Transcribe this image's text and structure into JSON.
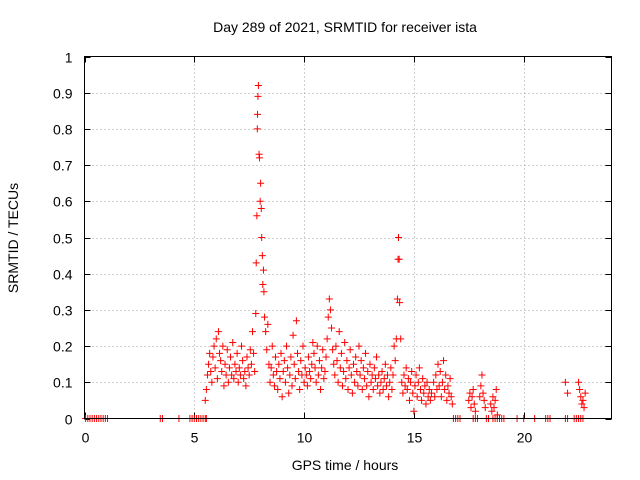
{
  "chart_data": {
    "type": "scatter",
    "title": "Day 289 of 2021, SRMTID for receiver ista",
    "xlabel": "GPS time / hours",
    "ylabel": "SRMTID / TECUs",
    "xlim": [
      0,
      24
    ],
    "ylim": [
      0,
      1
    ],
    "xticks": [
      0,
      5,
      10,
      15,
      20
    ],
    "xtick_labels": [
      "0",
      "5",
      "10",
      "15",
      "20"
    ],
    "yticks": [
      0,
      0.1,
      0.2,
      0.3,
      0.4,
      0.5,
      0.6,
      0.7,
      0.8,
      0.9,
      1
    ],
    "ytick_labels": [
      "0",
      "0.1",
      "0.2",
      "0.3",
      "0.4",
      "0.5",
      "0.6",
      "0.7",
      "0.8",
      "0.9",
      "1"
    ],
    "grid": true,
    "marker": "+",
    "color": "#ff0000",
    "series": [
      {
        "name": "SRMTID",
        "points": [
          [
            0.05,
            0
          ],
          [
            0.15,
            0
          ],
          [
            0.25,
            0
          ],
          [
            0.35,
            0
          ],
          [
            0.45,
            0
          ],
          [
            0.55,
            0
          ],
          [
            0.65,
            0
          ],
          [
            0.75,
            0
          ],
          [
            0.85,
            0
          ],
          [
            0.95,
            0
          ],
          [
            1.05,
            0
          ],
          [
            3.45,
            0
          ],
          [
            3.55,
            0
          ],
          [
            4.3,
            0
          ],
          [
            4.8,
            0
          ],
          [
            4.9,
            0
          ],
          [
            5.0,
            0
          ],
          [
            5.1,
            0
          ],
          [
            5.2,
            0
          ],
          [
            5.3,
            0
          ],
          [
            5.4,
            0
          ],
          [
            5.5,
            0
          ],
          [
            5.55,
            0
          ],
          [
            5.5,
            0.05
          ],
          [
            5.55,
            0.08
          ],
          [
            5.6,
            0.12
          ],
          [
            5.65,
            0.15
          ],
          [
            5.7,
            0.18
          ],
          [
            5.75,
            0.13
          ],
          [
            5.8,
            0.1
          ],
          [
            5.85,
            0.17
          ],
          [
            5.9,
            0.2
          ],
          [
            5.95,
            0.14
          ],
          [
            6.0,
            0.22
          ],
          [
            6.05,
            0.11
          ],
          [
            6.1,
            0.24
          ],
          [
            6.15,
            0.18
          ],
          [
            6.2,
            0.16
          ],
          [
            6.25,
            0.13
          ],
          [
            6.3,
            0.2
          ],
          [
            6.35,
            0.09
          ],
          [
            6.4,
            0.15
          ],
          [
            6.45,
            0.12
          ],
          [
            6.5,
            0.19
          ],
          [
            6.55,
            0.1
          ],
          [
            6.6,
            0.14
          ],
          [
            6.65,
            0.17
          ],
          [
            6.7,
            0.12
          ],
          [
            6.75,
            0.21
          ],
          [
            6.8,
            0.11
          ],
          [
            6.85,
            0.15
          ],
          [
            6.9,
            0.13
          ],
          [
            6.95,
            0.18
          ],
          [
            7.0,
            0.1
          ],
          [
            7.05,
            0.14
          ],
          [
            7.1,
            0.12
          ],
          [
            7.15,
            0.2
          ],
          [
            7.2,
            0.16
          ],
          [
            7.25,
            0.11
          ],
          [
            7.3,
            0.13
          ],
          [
            7.35,
            0.09
          ],
          [
            7.4,
            0.17
          ],
          [
            7.45,
            0.14
          ],
          [
            7.5,
            0.12
          ],
          [
            7.55,
            0.19
          ],
          [
            7.6,
            0.15
          ],
          [
            7.65,
            0.24
          ],
          [
            7.7,
            0.18
          ],
          [
            7.75,
            0.13
          ],
          [
            7.8,
            0.29
          ],
          [
            7.82,
            0.43
          ],
          [
            7.85,
            0.56
          ],
          [
            7.87,
            0.8
          ],
          [
            7.88,
            0.84
          ],
          [
            7.9,
            0.89
          ],
          [
            7.92,
            0.92
          ],
          [
            7.95,
            0.73
          ],
          [
            7.97,
            0.72
          ],
          [
            8.0,
            0.6
          ],
          [
            8.02,
            0.65
          ],
          [
            8.05,
            0.58
          ],
          [
            8.07,
            0.5
          ],
          [
            8.1,
            0.45
          ],
          [
            8.12,
            0.37
          ],
          [
            8.15,
            0.41
          ],
          [
            8.17,
            0.35
          ],
          [
            8.2,
            0.28
          ],
          [
            8.25,
            0.24
          ],
          [
            8.3,
            0.19
          ],
          [
            8.35,
            0.26
          ],
          [
            8.4,
            0.15
          ],
          [
            8.45,
            0.1
          ],
          [
            8.5,
            0.14
          ],
          [
            8.55,
            0.2
          ],
          [
            8.6,
            0.12
          ],
          [
            8.65,
            0.09
          ],
          [
            8.7,
            0.17
          ],
          [
            8.75,
            0.13
          ],
          [
            8.8,
            0.08
          ],
          [
            8.85,
            0.15
          ],
          [
            8.9,
            0.11
          ],
          [
            8.95,
            0.18
          ],
          [
            9.0,
            0.06
          ],
          [
            9.05,
            0.13
          ],
          [
            9.1,
            0.16
          ],
          [
            9.15,
            0.1
          ],
          [
            9.2,
            0.2
          ],
          [
            9.25,
            0.14
          ],
          [
            9.3,
            0.07
          ],
          [
            9.35,
            0.12
          ],
          [
            9.4,
            0.17
          ],
          [
            9.45,
            0.09
          ],
          [
            9.5,
            0.23
          ],
          [
            9.55,
            0.15
          ],
          [
            9.6,
            0.11
          ],
          [
            9.65,
            0.27
          ],
          [
            9.7,
            0.18
          ],
          [
            9.75,
            0.13
          ],
          [
            9.8,
            0.08
          ],
          [
            9.85,
            0.16
          ],
          [
            9.9,
            0.12
          ],
          [
            9.95,
            0.2
          ],
          [
            10.0,
            0.1
          ],
          [
            10.05,
            0.14
          ],
          [
            10.1,
            0.12
          ],
          [
            10.15,
            0.09
          ],
          [
            10.2,
            0.17
          ],
          [
            10.25,
            0.13
          ],
          [
            10.3,
            0.11
          ],
          [
            10.35,
            0.15
          ],
          [
            10.4,
            0.21
          ],
          [
            10.45,
            0.18
          ],
          [
            10.5,
            0.14
          ],
          [
            10.55,
            0.1
          ],
          [
            10.6,
            0.2
          ],
          [
            10.65,
            0.12
          ],
          [
            10.7,
            0.16
          ],
          [
            10.75,
            0.08
          ],
          [
            10.8,
            0.14
          ],
          [
            10.85,
            0.19
          ],
          [
            10.9,
            0.11
          ],
          [
            10.95,
            0.13
          ],
          [
            11.0,
            0.17
          ],
          [
            11.05,
            0.22
          ],
          [
            11.1,
            0.28
          ],
          [
            11.15,
            0.33
          ],
          [
            11.2,
            0.3
          ],
          [
            11.25,
            0.25
          ],
          [
            11.3,
            0.19
          ],
          [
            11.35,
            0.15
          ],
          [
            11.4,
            0.12
          ],
          [
            11.45,
            0.2
          ],
          [
            11.5,
            0.16
          ],
          [
            11.55,
            0.1
          ],
          [
            11.6,
            0.24
          ],
          [
            11.65,
            0.14
          ],
          [
            11.7,
            0.18
          ],
          [
            11.75,
            0.09
          ],
          [
            11.8,
            0.13
          ],
          [
            11.85,
            0.21
          ],
          [
            11.9,
            0.11
          ],
          [
            11.95,
            0.16
          ],
          [
            12.0,
            0.08
          ],
          [
            12.05,
            0.14
          ],
          [
            12.1,
            0.19
          ],
          [
            12.15,
            0.12
          ],
          [
            12.2,
            0.07
          ],
          [
            12.25,
            0.15
          ],
          [
            12.3,
            0.1
          ],
          [
            12.35,
            0.17
          ],
          [
            12.4,
            0.13
          ],
          [
            12.45,
            0.09
          ],
          [
            12.5,
            0.2
          ],
          [
            12.55,
            0.12
          ],
          [
            12.6,
            0.16
          ],
          [
            12.65,
            0.08
          ],
          [
            12.7,
            0.14
          ],
          [
            12.75,
            0.11
          ],
          [
            12.8,
            0.18
          ],
          [
            12.85,
            0.09
          ],
          [
            12.9,
            0.13
          ],
          [
            12.95,
            0.06
          ],
          [
            13.0,
            0.15
          ],
          [
            13.05,
            0.1
          ],
          [
            13.1,
            0.12
          ],
          [
            13.15,
            0.08
          ],
          [
            13.2,
            0.14
          ],
          [
            13.25,
            0.11
          ],
          [
            13.3,
            0.17
          ],
          [
            13.35,
            0.09
          ],
          [
            13.4,
            0.12
          ],
          [
            13.45,
            0.07
          ],
          [
            13.5,
            0.1
          ],
          [
            13.55,
            0.13
          ],
          [
            13.6,
            0.08
          ],
          [
            13.65,
            0.11
          ],
          [
            13.7,
            0.15
          ],
          [
            13.75,
            0.09
          ],
          [
            13.8,
            0.12
          ],
          [
            13.85,
            0.06
          ],
          [
            13.9,
            0.1
          ],
          [
            13.95,
            0.14
          ],
          [
            14.0,
            0.08
          ],
          [
            14.05,
            0.12
          ],
          [
            14.1,
            0.2
          ],
          [
            14.15,
            0.16
          ],
          [
            14.2,
            0.22
          ],
          [
            14.25,
            0.33
          ],
          [
            14.28,
            0.44
          ],
          [
            14.3,
            0.5
          ],
          [
            14.33,
            0.44
          ],
          [
            14.35,
            0.32
          ],
          [
            14.4,
            0.22
          ],
          [
            14.45,
            0.1
          ],
          [
            14.5,
            0.07
          ],
          [
            14.55,
            0.12
          ],
          [
            14.6,
            0.09
          ],
          [
            14.65,
            0.14
          ],
          [
            14.7,
            0.08
          ],
          [
            14.75,
            0.11
          ],
          [
            14.8,
            0.05
          ],
          [
            14.85,
            0.1
          ],
          [
            14.9,
            0.13
          ],
          [
            14.95,
            0.07
          ],
          [
            15.0,
            0.02
          ],
          [
            15.05,
            0.09
          ],
          [
            15.1,
            0.12
          ],
          [
            15.15,
            0.06
          ],
          [
            15.2,
            0.1
          ],
          [
            15.25,
            0.14
          ],
          [
            15.3,
            0.08
          ],
          [
            15.35,
            0.05
          ],
          [
            15.4,
            0.11
          ],
          [
            15.45,
            0.07
          ],
          [
            15.5,
            0.09
          ],
          [
            15.55,
            0.04
          ],
          [
            15.6,
            0.1
          ],
          [
            15.65,
            0.06
          ],
          [
            15.7,
            0.08
          ],
          [
            15.75,
            0.05
          ],
          [
            15.8,
            0.07
          ],
          [
            15.9,
            0.1
          ],
          [
            15.95,
            0.06
          ],
          [
            16.0,
            0.12
          ],
          [
            16.05,
            0.08
          ],
          [
            16.1,
            0.15
          ],
          [
            16.15,
            0.09
          ],
          [
            16.2,
            0.13
          ],
          [
            16.25,
            0.06
          ],
          [
            16.3,
            0.1
          ],
          [
            16.35,
            0.16
          ],
          [
            16.4,
            0.08
          ],
          [
            16.45,
            0.12
          ],
          [
            16.5,
            0.05
          ],
          [
            16.55,
            0.09
          ],
          [
            16.6,
            0.07
          ],
          [
            16.65,
            0.11
          ],
          [
            16.7,
            0.06
          ],
          [
            16.75,
            0.04
          ],
          [
            16.8,
            0
          ],
          [
            16.9,
            0
          ],
          [
            17.0,
            0
          ],
          [
            17.1,
            0
          ],
          [
            17.5,
            0.05
          ],
          [
            17.55,
            0.07
          ],
          [
            17.6,
            0.03
          ],
          [
            17.65,
            0.06
          ],
          [
            17.7,
            0.08
          ],
          [
            17.75,
            0.04
          ],
          [
            17.8,
            0.02
          ],
          [
            17.7,
            0
          ],
          [
            17.8,
            0
          ],
          [
            17.9,
            0
          ],
          [
            18.0,
            0.06
          ],
          [
            18.05,
            0.09
          ],
          [
            18.1,
            0.12
          ],
          [
            18.15,
            0.07
          ],
          [
            18.2,
            0.05
          ],
          [
            18.25,
            0.03
          ],
          [
            18.3,
            0
          ],
          [
            18.4,
            0
          ],
          [
            18.5,
            0.04
          ],
          [
            18.55,
            0.02
          ],
          [
            18.6,
            0.06
          ],
          [
            18.65,
            0.03
          ],
          [
            18.7,
            0.05
          ],
          [
            18.75,
            0.08
          ],
          [
            18.8,
            0.01
          ],
          [
            18.6,
            0
          ],
          [
            18.7,
            0
          ],
          [
            18.8,
            0
          ],
          [
            18.9,
            0
          ],
          [
            19.0,
            0
          ],
          [
            19.1,
            0
          ],
          [
            19.7,
            0
          ],
          [
            20.0,
            0
          ],
          [
            20.5,
            0
          ],
          [
            21.0,
            0
          ],
          [
            21.1,
            0
          ],
          [
            21.2,
            0
          ],
          [
            21.9,
            0
          ],
          [
            22.0,
            0
          ],
          [
            22.3,
            0
          ],
          [
            22.4,
            0
          ],
          [
            22.5,
            0
          ],
          [
            21.9,
            0.1
          ],
          [
            22.0,
            0.07
          ],
          [
            22.5,
            0.1
          ],
          [
            22.55,
            0.08
          ],
          [
            22.6,
            0.06
          ],
          [
            22.65,
            0.04
          ],
          [
            22.7,
            0.05
          ],
          [
            22.75,
            0.03
          ],
          [
            22.8,
            0.07
          ],
          [
            22.6,
            0
          ],
          [
            22.7,
            0
          ]
        ]
      }
    ]
  }
}
